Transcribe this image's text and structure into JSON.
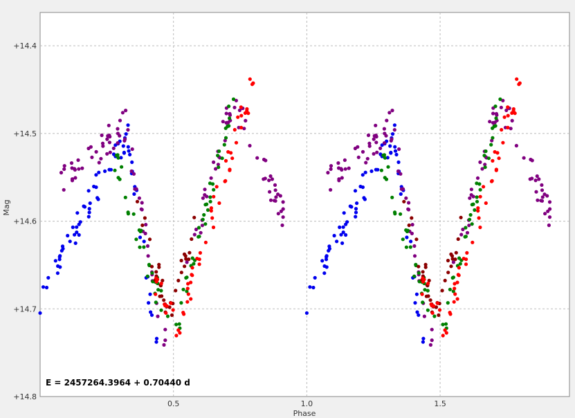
{
  "chart_data": {
    "type": "scatter",
    "xlabel": "Phase",
    "ylabel": "Mag",
    "xlim": [
      0.0,
      1.985
    ],
    "ylim": [
      14.8,
      14.362
    ],
    "y_inverted": true,
    "grid": true,
    "x_ticks": [
      0.5,
      1.0,
      1.5
    ],
    "x_tick_labels": [
      "0.5",
      "1.0",
      "1.5"
    ],
    "y_ticks": [
      14.4,
      14.5,
      14.6,
      14.7,
      14.8
    ],
    "y_tick_labels": [
      "+14.4",
      "+14.5",
      "+14.6",
      "+14.7",
      "+14.8"
    ],
    "annotation": "E = 2457264.3964 + 0.70440 d",
    "period_d": 0.7044,
    "series": [
      {
        "color": "#0000ee",
        "segments": [
          [
            0.0,
            0.2,
            14.69,
            14.57
          ],
          [
            0.2,
            0.33,
            14.57,
            14.5
          ],
          [
            0.33,
            0.45,
            14.5,
            14.78
          ]
        ]
      },
      {
        "color": "#800080",
        "segments": [
          [
            0.07,
            0.32,
            14.56,
            14.49
          ],
          [
            0.32,
            0.47,
            14.49,
            14.74
          ],
          [
            0.55,
            0.72,
            14.66,
            14.46
          ],
          [
            0.72,
            0.92,
            14.46,
            14.6
          ]
        ]
      },
      {
        "color": "#008000",
        "segments": [
          [
            0.28,
            0.48,
            14.53,
            14.72
          ],
          [
            0.5,
            0.74,
            14.74,
            14.44
          ]
        ]
      },
      {
        "color": "#8b0000",
        "segments": [
          [
            0.35,
            0.49,
            14.57,
            14.71
          ],
          [
            0.49,
            0.58,
            14.71,
            14.6
          ]
        ]
      },
      {
        "color": "#ff0000",
        "segments": [
          [
            0.43,
            0.52,
            14.67,
            14.72
          ],
          [
            0.52,
            0.8,
            14.72,
            14.44
          ]
        ]
      }
    ]
  }
}
